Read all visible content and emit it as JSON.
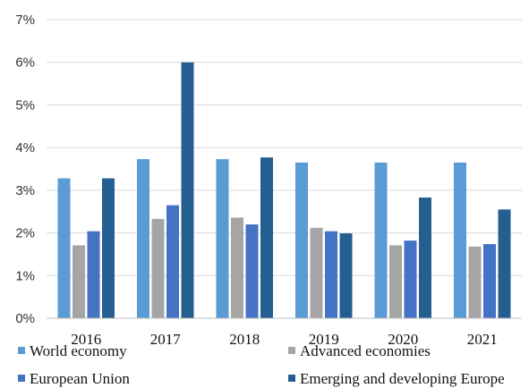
{
  "chart_data": {
    "type": "bar",
    "title": "",
    "xlabel": "",
    "ylabel": "",
    "categories": [
      "2016",
      "2017",
      "2018",
      "2019",
      "2020",
      "2021"
    ],
    "y_ticks": [
      "0%",
      "1%",
      "2%",
      "3%",
      "4%",
      "5%",
      "6%",
      "7%"
    ],
    "ylim": [
      0,
      7
    ],
    "grid": "horizontal",
    "legend_position": "bottom",
    "series": [
      {
        "name": "World economy",
        "color": "#5B9BD5",
        "values": [
          3.28,
          3.73,
          3.73,
          3.65,
          3.65,
          3.65
        ]
      },
      {
        "name": "Advanced economies",
        "color": "#A5A5A5",
        "values": [
          1.71,
          2.33,
          2.36,
          2.12,
          1.71,
          1.68
        ]
      },
      {
        "name": "European Union",
        "color": "#4472C4",
        "values": [
          2.04,
          2.65,
          2.2,
          2.04,
          1.82,
          1.74
        ]
      },
      {
        "name": "Emerging and developing Europe",
        "color": "#255E91",
        "values": [
          3.28,
          6.0,
          3.77,
          1.99,
          2.83,
          2.55
        ]
      }
    ]
  }
}
